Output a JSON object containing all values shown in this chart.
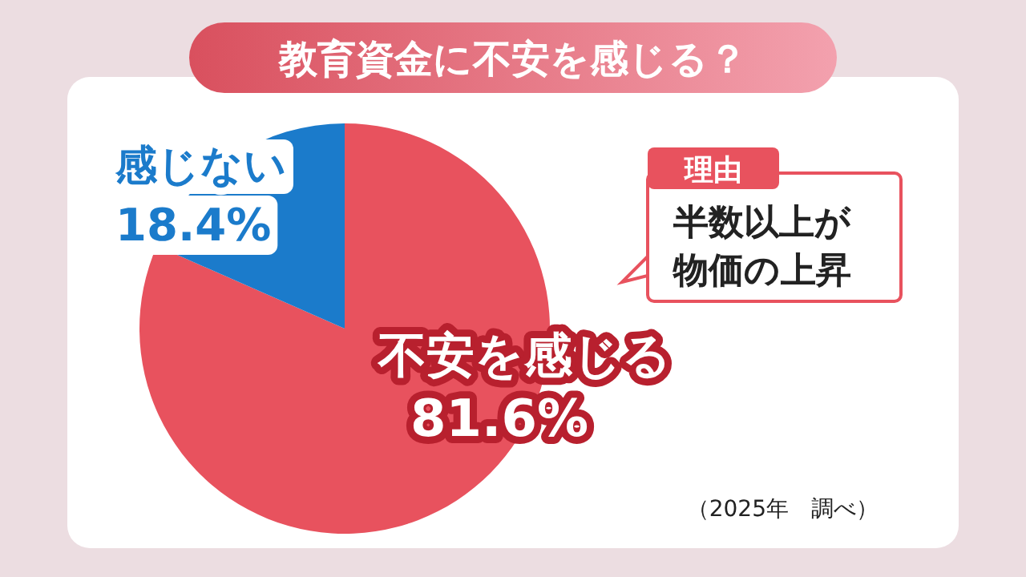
{
  "chart_data": {
    "type": "pie",
    "title": "教育資金に不安を感じる？",
    "categories": [
      "不安を感じる",
      "感じない"
    ],
    "values": [
      81.6,
      18.4
    ],
    "colors": [
      "#e8525e",
      "#1b7bcb"
    ],
    "value_labels": [
      "81.6%",
      "18.4%"
    ],
    "annotations": [
      "理由",
      "半数以上が",
      "物価の上昇",
      "（2025年　調べ）"
    ]
  }
}
